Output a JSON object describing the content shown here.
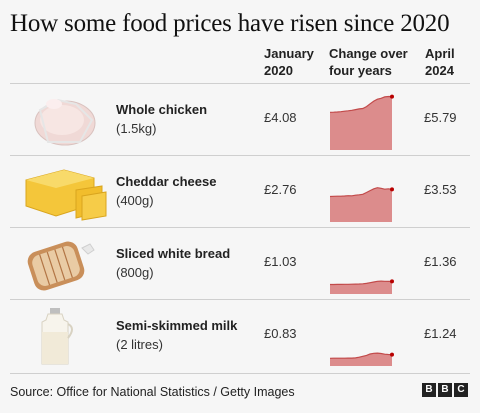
{
  "title": "How some food prices have risen since 2020",
  "columns": {
    "jan": "January\n2020",
    "change": "Change over\nfour years",
    "apr": "April\n2024"
  },
  "source": "Source: Office for National Statistics / Getty Images",
  "logo": [
    "B",
    "B",
    "C"
  ],
  "colors": {
    "area": "#dc8c8c",
    "line": "#c24a4a",
    "dot": "#b80000"
  },
  "chart_data": {
    "type": "area",
    "title": "How some food prices have risen since 2020",
    "categories": [
      "Whole chicken",
      "Cheddar cheese",
      "Sliced white bread",
      "Semi-skimmed milk"
    ],
    "ylim": [
      0,
      6.5
    ],
    "rows": [
      {
        "name": "Whole chicken",
        "qty": "(1.5kg)",
        "icon": "chicken-icon",
        "jan": "£4.08",
        "apr": "£5.79",
        "jan_value": 4.08,
        "apr_value": 5.79,
        "values": [
          4.08,
          4.1,
          4.12,
          4.15,
          4.2,
          4.25,
          4.3,
          4.38,
          4.45,
          4.5,
          4.7,
          5.0,
          5.3,
          5.5,
          5.6,
          5.75,
          5.8,
          5.79
        ]
      },
      {
        "name": "Cheddar cheese",
        "qty": "(400g)",
        "icon": "cheese-icon",
        "jan": "£2.76",
        "apr": "£3.53",
        "jan_value": 2.76,
        "apr_value": 3.53,
        "values": [
          2.76,
          2.78,
          2.8,
          2.8,
          2.82,
          2.85,
          2.84,
          2.9,
          2.95,
          3.0,
          3.2,
          3.4,
          3.6,
          3.72,
          3.65,
          3.55,
          3.6,
          3.53
        ]
      },
      {
        "name": "Sliced white bread",
        "qty": "(800g)",
        "icon": "bread-icon",
        "jan": "£1.03",
        "apr": "£1.36",
        "jan_value": 1.03,
        "apr_value": 1.36,
        "values": [
          1.03,
          1.03,
          1.04,
          1.04,
          1.05,
          1.05,
          1.06,
          1.07,
          1.08,
          1.1,
          1.15,
          1.22,
          1.3,
          1.38,
          1.4,
          1.38,
          1.37,
          1.36
        ]
      },
      {
        "name": "Semi-skimmed milk",
        "qty": "(2 litres)",
        "icon": "milk-icon",
        "jan": "£0.83",
        "apr": "£1.24",
        "jan_value": 0.83,
        "apr_value": 1.24,
        "values": [
          0.83,
          0.84,
          0.84,
          0.85,
          0.85,
          0.86,
          0.86,
          0.88,
          0.95,
          1.05,
          1.15,
          1.3,
          1.38,
          1.4,
          1.35,
          1.28,
          1.25,
          1.24
        ]
      }
    ]
  }
}
